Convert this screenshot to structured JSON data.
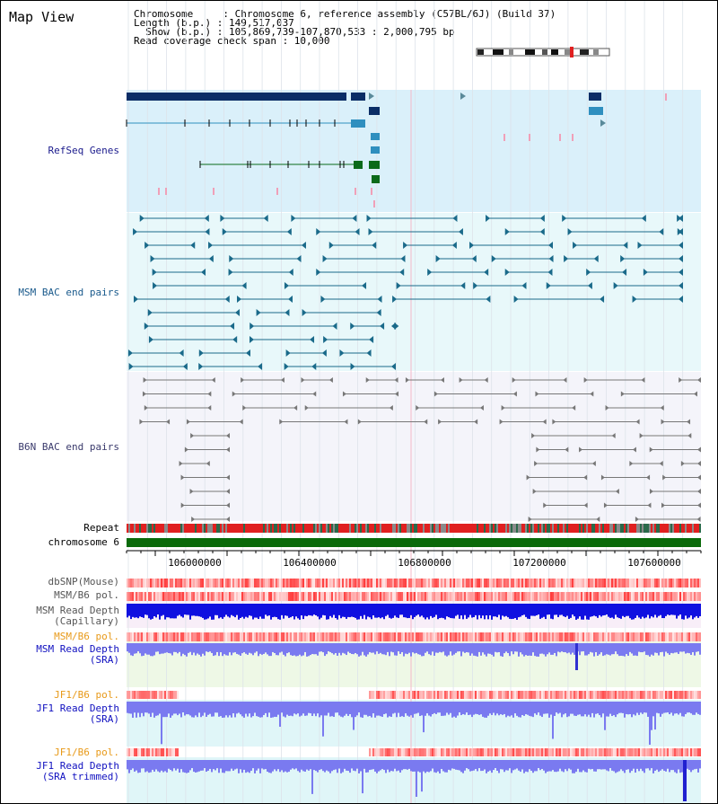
{
  "app": {
    "title": "Map View"
  },
  "info": {
    "chromosome_line": "Chromosome     : Chromosome 6, reference assembly (C57BL/6J) (Build 37)",
    "length_line": "Length (b.p.) : 149,517,037",
    "show_line": "  Show (b.p.) : 105,869,739-107,870,533 : 2,000,795 bp",
    "coverage_line": "Read coverage check span : 10,000"
  },
  "tracks": {
    "refseq": {
      "label": "RefSeq Genes",
      "color": "#1a1a8c",
      "bg": "#daf0fa"
    },
    "msm_bac": {
      "label": "MSM BAC end pairs",
      "color": "#1a5a8c",
      "bg": "#e8f8fa"
    },
    "b6n_bac": {
      "label": "B6N BAC end pairs",
      "color": "#3a3a6c",
      "bg": "#f4f4fa"
    },
    "repeat": {
      "label": "Repeat"
    },
    "chromosome": {
      "label": "chromosome 6"
    },
    "dbsnp": {
      "label": "dbSNP(Mouse)",
      "color": "#555555"
    },
    "msm_b6_pol": {
      "label": "MSM/B6 pol.",
      "color": "#555555"
    },
    "msm_depth_cap": {
      "label_line1": "MSM Read Depth",
      "label_line2": "(Capillary)",
      "color": "#555555"
    },
    "msm_b6_pol2": {
      "label": "MSM/B6 pol.",
      "color": "#e89a1a"
    },
    "msm_depth_sra": {
      "label_line1": "MSM Read Depth",
      "label_line2": "(SRA)",
      "color": "#1010c0"
    },
    "jf1_b6_pol": {
      "label": "JF1/B6 pol.",
      "color": "#e89a1a"
    },
    "jf1_depth_sra": {
      "label_line1": "JF1 Read Depth",
      "label_line2": "(SRA)",
      "color": "#1010c0"
    },
    "jf1_b6_pol2": {
      "label": "JF1/B6 pol.",
      "color": "#e89a1a"
    },
    "jf1_depth_trim": {
      "label_line1": "JF1 Read Depth",
      "label_line2": "(SRA trimmed)",
      "color": "#1010c0"
    }
  },
  "axis": {
    "ticks": [
      "106000000",
      "106400000",
      "106800000",
      "107200000",
      "107600000"
    ]
  },
  "colors": {
    "refseq_dark": "#0b2d66",
    "refseq_mid": "#2f8fbf",
    "refseq_green": "#0a6a1a",
    "msm_pair": "#1a6a8a",
    "b6n_pair": "#777777",
    "chromosome_bar": "#0a6a0a",
    "depth_dark": "#1010e0",
    "depth_light": "#7a7af0",
    "pol_red": "#e03030"
  }
}
